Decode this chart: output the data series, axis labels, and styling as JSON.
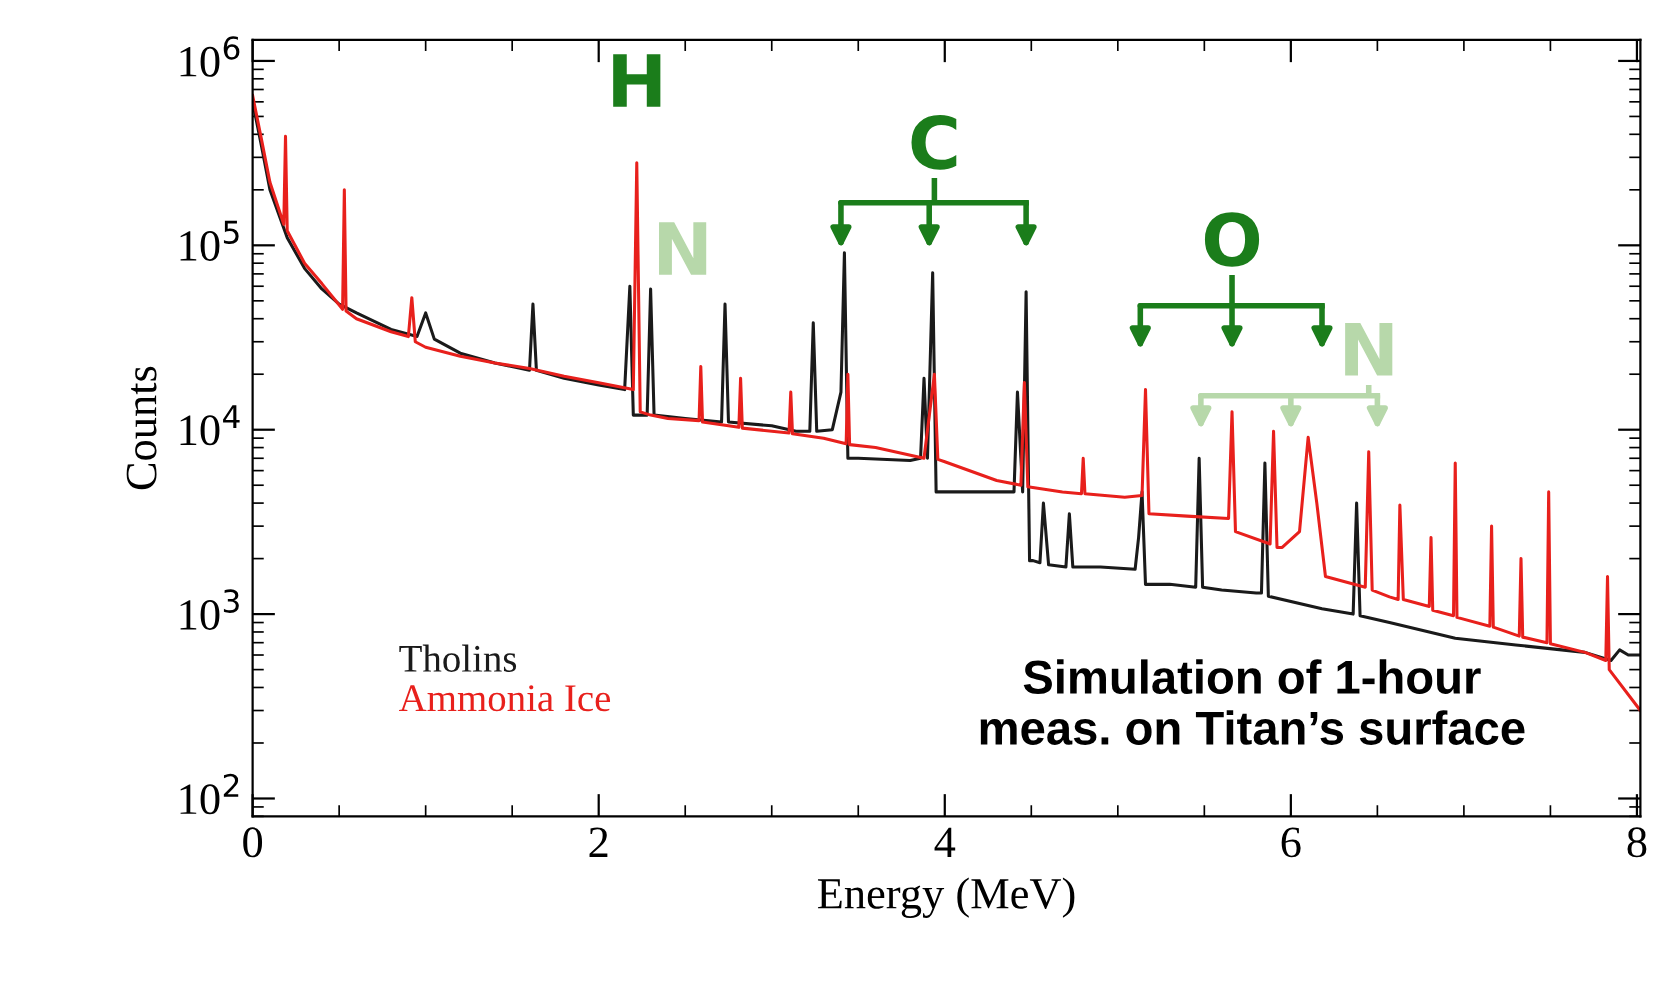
{
  "chart_data": {
    "type": "line",
    "xlabel": "Energy (MeV)",
    "ylabel": "Counts",
    "log": "y",
    "xlim": [
      0,
      8.02
    ],
    "ylim": [
      80,
      1300000
    ],
    "xticks": [
      0,
      2,
      4,
      6,
      8
    ],
    "yticks": [
      {
        "value": 100,
        "label": "10$^{2}$"
      },
      {
        "value": 1000,
        "label": "10$^{3}$"
      },
      {
        "value": 10000,
        "label": "10$^{4}$"
      },
      {
        "value": 100000,
        "label": "10$^{5}$"
      },
      {
        "value": 1000000,
        "label": "10$^{6}$"
      }
    ],
    "legend": "bottom left",
    "grid": false,
    "marker": "none",
    "line_style": "solid",
    "series": [
      {
        "name": "Tholins",
        "color": "#1a1a1a",
        "x": [
          0.0,
          0.05,
          0.1,
          0.2,
          0.3,
          0.4,
          0.5,
          0.6,
          0.8,
          0.95,
          1.0,
          1.05,
          1.2,
          1.4,
          1.6,
          1.62,
          1.64,
          1.8,
          2.0,
          2.15,
          2.18,
          2.2,
          2.28,
          2.3,
          2.32,
          2.5,
          2.71,
          2.73,
          2.75,
          3.0,
          3.14,
          3.22,
          3.24,
          3.26,
          3.35,
          3.4,
          3.42,
          3.44,
          3.46,
          3.5,
          3.8,
          3.86,
          3.88,
          3.9,
          3.93,
          3.95,
          3.97,
          4.0,
          4.35,
          4.4,
          4.42,
          4.45,
          4.47,
          4.49,
          4.51,
          4.55,
          4.57,
          4.6,
          4.7,
          4.72,
          4.74,
          4.9,
          5.1,
          5.12,
          5.14,
          5.16,
          5.3,
          5.45,
          5.47,
          5.49,
          5.6,
          5.8,
          5.83,
          5.85,
          5.87,
          6.18,
          6.36,
          6.38,
          6.4,
          6.57,
          6.95,
          7.3,
          7.7,
          7.85,
          7.9,
          7.95,
          8.02
        ],
        "values": [
          600000,
          350000,
          200000,
          110000,
          75000,
          58000,
          48000,
          43000,
          35000,
          32000,
          43000,
          31000,
          26000,
          23000,
          21000,
          48000,
          21000,
          19000,
          17500,
          16500,
          60000,
          12000,
          12000,
          58000,
          12000,
          11500,
          11000,
          48000,
          11000,
          10500,
          9800,
          9800,
          38000,
          9800,
          10000,
          16000,
          91000,
          7000,
          7000,
          7000,
          6800,
          7000,
          19000,
          7000,
          71000,
          4600,
          4600,
          4600,
          4600,
          4600,
          16000,
          4600,
          56000,
          1950,
          1950,
          1900,
          4000,
          1850,
          1800,
          3500,
          1800,
          1800,
          1750,
          2600,
          4600,
          1450,
          1450,
          1400,
          7000,
          1400,
          1350,
          1300,
          1300,
          6600,
          1250,
          1070,
          1000,
          4000,
          980,
          900,
          740,
          680,
          620,
          560,
          640,
          600,
          600
        ]
      },
      {
        "name": "Ammonia Ice",
        "color": "#e8201c",
        "x": [
          0.0,
          0.05,
          0.1,
          0.18,
          0.19,
          0.2,
          0.3,
          0.4,
          0.52,
          0.53,
          0.54,
          0.6,
          0.8,
          0.9,
          0.92,
          0.94,
          1.0,
          1.2,
          1.4,
          1.6,
          1.8,
          2.0,
          2.2,
          2.22,
          2.24,
          2.3,
          2.4,
          2.58,
          2.59,
          2.6,
          2.81,
          2.82,
          2.83,
          3.1,
          3.11,
          3.12,
          3.3,
          3.43,
          3.44,
          3.45,
          3.6,
          3.88,
          3.94,
          3.96,
          4.0,
          4.3,
          4.44,
          4.46,
          4.48,
          4.68,
          4.79,
          4.8,
          4.81,
          5.04,
          5.14,
          5.16,
          5.18,
          5.4,
          5.64,
          5.66,
          5.68,
          5.88,
          5.9,
          5.92,
          5.95,
          6.05,
          6.1,
          6.15,
          6.2,
          6.43,
          6.45,
          6.47,
          6.57,
          6.62,
          6.63,
          6.65,
          6.8,
          6.81,
          6.82,
          6.94,
          6.95,
          6.96,
          7.15,
          7.16,
          7.17,
          7.32,
          7.33,
          7.34,
          7.48,
          7.49,
          7.5,
          7.7,
          7.82,
          7.83,
          7.84,
          8.02
        ],
        "values": [
          650000,
          380000,
          220000,
          130000,
          390000,
          120000,
          80000,
          62000,
          45000,
          200000,
          44000,
          40000,
          34000,
          32000,
          52000,
          30000,
          28000,
          25000,
          23000,
          21500,
          19500,
          18000,
          16500,
          280000,
          12500,
          12000,
          11500,
          11200,
          22000,
          11000,
          10300,
          19000,
          10200,
          9600,
          16000,
          9500,
          9000,
          8400,
          20000,
          8300,
          8000,
          7000,
          20000,
          6900,
          6700,
          5300,
          5000,
          18000,
          4900,
          4600,
          4500,
          7000,
          4500,
          4300,
          4400,
          16500,
          3500,
          3400,
          3300,
          12500,
          2800,
          2400,
          9800,
          2300,
          2300,
          2800,
          9100,
          4000,
          1600,
          1400,
          7600,
          1350,
          1240,
          1200,
          3900,
          1200,
          1100,
          2600,
          1050,
          980,
          6600,
          960,
          860,
          3000,
          850,
          760,
          2000,
          750,
          700,
          4600,
          690,
          620,
          560,
          1600,
          500,
          300
        ]
      }
    ],
    "annotations": [
      {
        "text": "H",
        "x": 2.22,
        "y": 280000
      },
      {
        "text": "N",
        "x": 2.3,
        "y": 58000
      },
      {
        "text": "C",
        "x": 3.94,
        "y": 71000
      },
      {
        "text": "O",
        "x": 5.66,
        "y": 12500
      },
      {
        "text": "N",
        "x": 6.45,
        "y": 7600
      },
      "Simulation of 1-hour\nmeas. on Titan’s surface"
    ]
  }
}
